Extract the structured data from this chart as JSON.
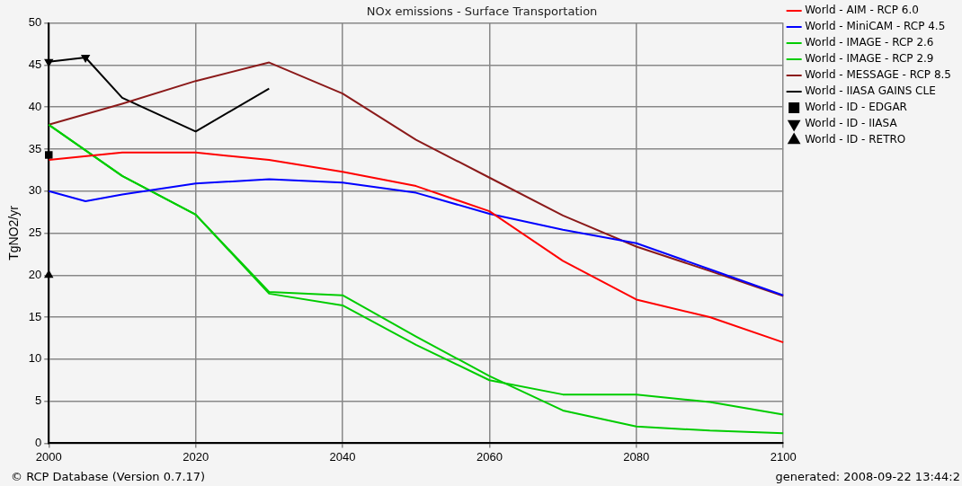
{
  "chart_data": {
    "type": "line",
    "title": "NOx emissions - Surface Transportation",
    "ylabel": "TgNO2/yr",
    "xlim": [
      2000,
      2100
    ],
    "xticks": [
      2000,
      2020,
      2040,
      2060,
      2080,
      2100
    ],
    "ylim": [
      0,
      50
    ],
    "yticks": [
      0,
      5,
      10,
      15,
      20,
      25,
      30,
      35,
      40,
      45,
      50
    ],
    "grid": true,
    "legend": "right",
    "marker": "none",
    "line_style": "solid",
    "annotations": [
      "© RCP Database (Version 0.7.17)",
      "generated: 2008-09-22 13:44:2"
    ],
    "series": [
      {
        "name": "World - AIM - RCP 6.0",
        "color": "#ff0000",
        "x": [
          2000,
          2010,
          2020,
          2030,
          2040,
          2050,
          2060,
          2070,
          2080,
          2090,
          2100
        ],
        "values": [
          33.7,
          34.6,
          34.6,
          33.7,
          32.3,
          30.6,
          27.6,
          21.7,
          17.1,
          15.0,
          12.0
        ]
      },
      {
        "name": "World - MiniCAM - RCP 4.5",
        "color": "#0000ff",
        "x": [
          2000,
          2005,
          2010,
          2020,
          2030,
          2040,
          2050,
          2060,
          2070,
          2080,
          2090,
          2100
        ],
        "values": [
          30.0,
          28.8,
          29.6,
          30.9,
          31.4,
          31.0,
          29.8,
          27.3,
          25.4,
          23.8,
          20.7,
          17.6
        ]
      },
      {
        "name": "World - IMAGE - RCP 2.6",
        "color": "#00cc00",
        "x": [
          2000,
          2010,
          2020,
          2030,
          2040,
          2050,
          2060,
          2070,
          2080,
          2090,
          2100
        ],
        "values": [
          37.9,
          31.8,
          27.2,
          18.0,
          17.6,
          12.7,
          8.0,
          3.9,
          2.0,
          1.5,
          1.2
        ]
      },
      {
        "name": "World - IMAGE - RCP 2.9",
        "color": "#00cc00",
        "x": [
          2000,
          2010,
          2020,
          2030,
          2040,
          2050,
          2060,
          2070,
          2080,
          2090,
          2100
        ],
        "values": [
          37.9,
          31.8,
          27.2,
          17.8,
          16.4,
          11.7,
          7.5,
          5.8,
          5.8,
          4.9,
          3.4
        ]
      },
      {
        "name": "World - MESSAGE - RCP 8.5",
        "color": "#8b1a1a",
        "x": [
          2000,
          2010,
          2020,
          2030,
          2040,
          2050,
          2060,
          2070,
          2080,
          2090,
          2100
        ],
        "values": [
          37.9,
          40.4,
          43.1,
          45.3,
          41.6,
          36.1,
          31.6,
          27.1,
          23.4,
          20.5,
          17.5
        ]
      },
      {
        "name": "World - IIASA GAINS CLE",
        "color": "#000000",
        "x": [
          2005,
          2010,
          2020,
          2030
        ],
        "values": [
          45.9,
          41.1,
          37.1,
          42.2
        ]
      },
      {
        "name": "World - ID - EDGAR",
        "color": "#000000",
        "marker": "square",
        "x": [
          2000
        ],
        "values": [
          34.3
        ]
      },
      {
        "name": "World - ID - IIASA",
        "color": "#000000",
        "marker": "triangle-down",
        "x": [
          2000,
          2005
        ],
        "values": [
          45.4,
          45.9
        ]
      },
      {
        "name": "World - ID - RETRO",
        "color": "#000000",
        "marker": "triangle",
        "x": [
          2000
        ],
        "values": [
          20.0
        ]
      }
    ]
  }
}
